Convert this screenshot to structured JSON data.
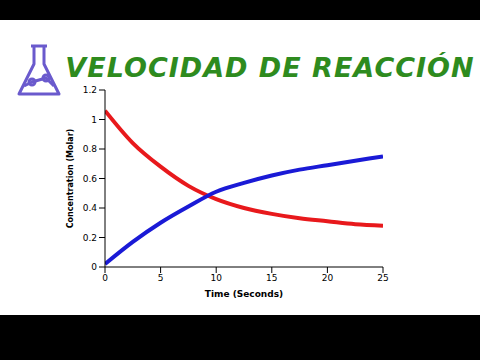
{
  "chart_data": {
    "type": "line",
    "title": "VELOCIDAD DE REACCIÓN",
    "x_label": "Time (Seconds)",
    "y_label": "Concentration (Molar)",
    "x": [
      0,
      2.5,
      5,
      7.5,
      10,
      12.5,
      15,
      17.5,
      20,
      22.5,
      25
    ],
    "series": [
      {
        "color": "#e8191c",
        "values": [
          1.06,
          0.84,
          0.68,
          0.55,
          0.46,
          0.4,
          0.36,
          0.33,
          0.31,
          0.29,
          0.28
        ]
      },
      {
        "color": "#1a1ad6",
        "values": [
          0.02,
          0.17,
          0.3,
          0.41,
          0.51,
          0.57,
          0.62,
          0.66,
          0.69,
          0.72,
          0.75
        ]
      }
    ],
    "xlim": [
      0,
      25
    ],
    "xticks": [
      0,
      5,
      10,
      15,
      20,
      25
    ],
    "ylim": [
      0,
      1.2
    ],
    "yticks": [
      0,
      0.2,
      0.4,
      0.6,
      0.8,
      1,
      1.2
    ],
    "grid": false
  }
}
